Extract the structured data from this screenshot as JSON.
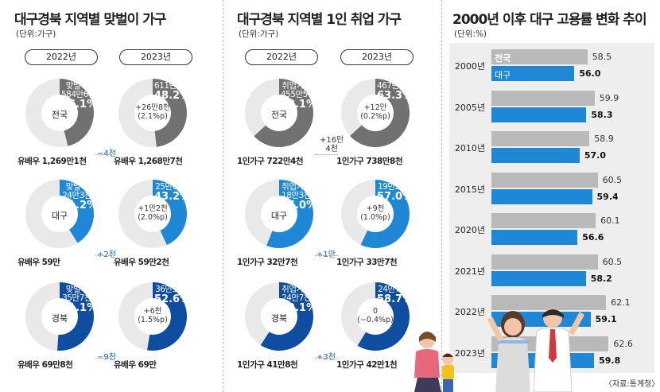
{
  "colors": {
    "dark_gray": "#717171",
    "light_blue": "#1e88d6",
    "navy": "#0e4da0",
    "donut_bg": "#e9e9e9",
    "bar_gray": "#b9b9b9",
    "bar_blue": "#1e88d6",
    "diff_blue": "#1a5fb4"
  },
  "left_panel": {
    "title": "대구경북 지역별 맞벌이 가구",
    "unit": "(단위:가구)",
    "years": [
      "2022년",
      "2023년"
    ]
  },
  "mid_panel": {
    "title": "대구경북 지역별 1인 취업 가구",
    "unit": "(단위:가구)",
    "years": [
      "2022년",
      "2023년"
    ]
  },
  "right_panel": {
    "title": "2000년 이후 대구 고용률 변화 추이",
    "unit": "(단위:%)",
    "source": "〈자료:통계청〉"
  },
  "chart_data": [
    {
      "type": "pie",
      "title": "대구경북 지역별 맞벌이 가구",
      "unit": "(단위:가구)",
      "rows": [
        {
          "region": "전국",
          "y2022": {
            "label": "맞벌이",
            "count": "584만6천",
            "pct": 46.1,
            "pct_text": "46.1%"
          },
          "y2023": {
            "label": "",
            "count": "611만5천",
            "pct": 48.2,
            "pct_text": "48.2%",
            "change": "+26만8천",
            "change_p": "(2.1%p)"
          },
          "base_2022": "유배우 1,269만1천",
          "base_2023": "유배우 1,268만7천",
          "base_diff": "−4천"
        },
        {
          "region": "대구",
          "y2022": {
            "label": "맞벌이",
            "count": "24만3천",
            "pct": 41.2,
            "pct_text": "41.2%"
          },
          "y2023": {
            "label": "",
            "count": "25만6천",
            "pct": 43.2,
            "pct_text": "43.2%",
            "change": "+1만2천",
            "change_p": "(2.0%p)"
          },
          "base_2022": "유배우 59만",
          "base_2023": "유배우 59만2천",
          "base_diff": "+2천"
        },
        {
          "region": "경북",
          "y2022": {
            "label": "맞벌이",
            "count": "35만7천",
            "pct": 51.1,
            "pct_text": "51.1%"
          },
          "y2023": {
            "label": "",
            "count": "36만3천",
            "pct": 52.6,
            "pct_text": "52.6%",
            "change": "+6천",
            "change_p": "(1.5%p)"
          },
          "base_2022": "유배우 69만8천",
          "base_2023": "유배우 69만",
          "base_diff": "−9천"
        }
      ]
    },
    {
      "type": "pie",
      "title": "대구경북 지역별 1인 취업 가구",
      "unit": "(단위:가구)",
      "rows": [
        {
          "region": "전국",
          "y2022": {
            "label": "취업가구",
            "count": "455만5천",
            "pct": 63.1,
            "pct_text": "63.1%"
          },
          "y2023": {
            "label": "",
            "count": "467만5천",
            "pct": 63.3,
            "pct_text": "63.3%",
            "change": "+12만",
            "change_p": "(0.2%p)"
          },
          "base_2022": "1인가구 722만4천",
          "base_2023": "1인가구 738만8천",
          "base_diff": "+16만\n4천"
        },
        {
          "region": "대구",
          "y2022": {
            "label": "취업가구",
            "count": "18만3천",
            "pct": 56.0,
            "pct_text": "56.0%"
          },
          "y2023": {
            "label": "",
            "count": "19만2천",
            "pct": 57.0,
            "pct_text": "57.0%",
            "change": "+9천",
            "change_p": "(1.0%p)"
          },
          "base_2022": "1인가구 32만7천",
          "base_2023": "1인가구 33만7천",
          "base_diff": "+1만"
        },
        {
          "region": "경북",
          "y2022": {
            "label": "취업가구",
            "count": "24만7천",
            "pct": 59.1,
            "pct_text": "59.1%"
          },
          "y2023": {
            "label": "",
            "count": "24만7천",
            "pct": 58.7,
            "pct_text": "58.7%",
            "change": "0",
            "change_p": "(−0.4%p)"
          },
          "base_2022": "1인가구 41만8천",
          "base_2023": "1인가구 42만1천",
          "base_diff": "+3천"
        }
      ]
    },
    {
      "type": "bar",
      "orientation": "horizontal",
      "title": "2000년 이후 대구 고용률 변화 추이",
      "unit": "(단위:%)",
      "categories": [
        "2000년",
        "2005년",
        "2010년",
        "2015년",
        "2020년",
        "2021년",
        "2022년",
        "2023년"
      ],
      "series": [
        {
          "name": "전국",
          "values": [
            58.5,
            59.9,
            58.9,
            60.5,
            60.1,
            60.5,
            62.1,
            62.6
          ]
        },
        {
          "name": "대구",
          "values": [
            56.0,
            58.3,
            57.0,
            59.4,
            56.6,
            58.2,
            59.1,
            59.8
          ]
        }
      ],
      "value_labels": {
        "전국": [
          "58.5",
          "59.9",
          "58.9",
          "60.5",
          "60.1",
          "60.5",
          "62.1",
          "62.6"
        ],
        "대구": [
          "56.0",
          "58.3",
          "57.0",
          "59.4",
          "56.6",
          "58.2",
          "59.1",
          "59.8"
        ]
      }
    }
  ]
}
